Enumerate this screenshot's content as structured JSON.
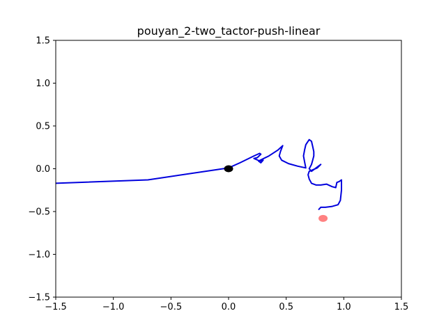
{
  "chart_data": {
    "type": "line",
    "title": "pouyan_2-two_tactor-push-linear",
    "xlabel": "",
    "ylabel": "",
    "xlim": [
      -1.5,
      1.5
    ],
    "ylim": [
      -1.5,
      1.5
    ],
    "grid": false,
    "x_ticks": [
      -1.5,
      -1.0,
      -0.5,
      0.0,
      0.5,
      1.0,
      1.5
    ],
    "x_tick_labels": [
      "−1.5",
      "−1.0",
      "−0.5",
      "0.0",
      "0.5",
      "1.0",
      "1.5"
    ],
    "y_ticks": [
      1.5,
      1.0,
      0.5,
      0.0,
      -0.5,
      -1.0,
      -1.5
    ],
    "y_tick_labels": [
      "1.5",
      "1.0",
      "0.5",
      "0.0",
      "−0.5",
      "−1.0",
      "−1.5"
    ],
    "colors": {
      "path": "#0000dd",
      "start": "#000000",
      "target": "#ff6b6b"
    },
    "series": [
      {
        "type": "line",
        "x": [
          -1.5,
          -0.7,
          -0.1,
          0.0,
          0.1,
          0.22,
          0.27,
          0.28,
          0.25,
          0.22,
          0.27,
          0.3,
          0.28,
          0.26,
          0.35,
          0.43,
          0.47,
          0.45,
          0.44,
          0.46,
          0.52,
          0.6,
          0.67,
          0.66,
          0.65,
          0.66,
          0.67,
          0.68,
          0.7,
          0.72,
          0.73,
          0.74,
          0.74,
          0.73,
          0.72,
          0.7,
          0.72,
          0.8,
          0.77,
          0.7,
          0.69,
          0.7,
          0.72,
          0.76,
          0.8,
          0.85,
          0.9,
          0.93,
          0.94,
          0.96,
          0.98,
          0.98,
          0.97,
          0.95,
          0.9,
          0.84,
          0.8,
          0.78
        ],
        "y": [
          -0.17,
          -0.13,
          -0.01,
          0.01,
          0.07,
          0.15,
          0.18,
          0.17,
          0.13,
          0.12,
          0.09,
          0.1,
          0.07,
          0.09,
          0.15,
          0.22,
          0.27,
          0.2,
          0.15,
          0.1,
          0.06,
          0.03,
          0.01,
          0.08,
          0.15,
          0.22,
          0.28,
          0.3,
          0.34,
          0.32,
          0.26,
          0.2,
          0.15,
          0.1,
          0.05,
          0.0,
          -0.03,
          0.05,
          0.01,
          -0.03,
          -0.07,
          -0.12,
          -0.17,
          -0.19,
          -0.19,
          -0.18,
          -0.21,
          -0.22,
          -0.16,
          -0.15,
          -0.13,
          -0.25,
          -0.37,
          -0.42,
          -0.44,
          -0.45,
          -0.45,
          -0.48
        ]
      },
      {
        "type": "scatter",
        "x": [
          0.0
        ],
        "y": [
          0.0
        ]
      },
      {
        "type": "scatter",
        "x": [
          0.82
        ],
        "y": [
          -0.58
        ]
      }
    ]
  }
}
